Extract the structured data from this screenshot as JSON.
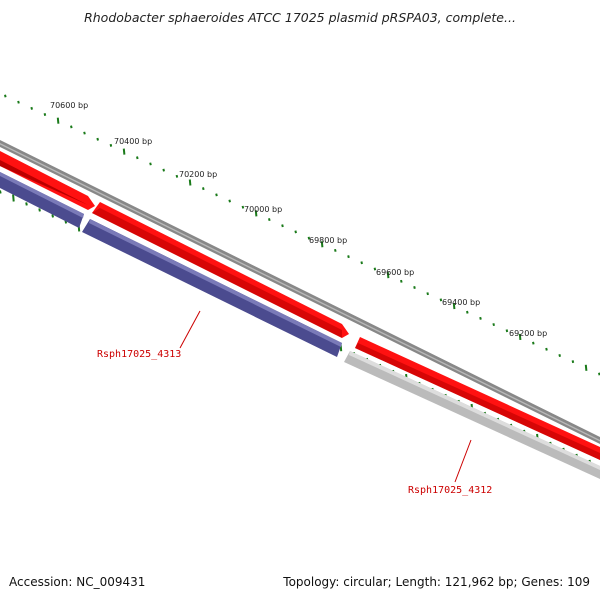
{
  "title": "Rhodobacter sphaeroides ATCC 17025 plasmid pRSPA03, complete...",
  "footer": {
    "accession": "Accession: NC_009431",
    "stats": "Topology: circular; Length: 121,962 bp; Genes: 109"
  },
  "ruler_labels": [
    "70600 bp",
    "70400 bp",
    "70200 bp",
    "70000 bp",
    "69800 bp",
    "69600 bp",
    "69400 bp",
    "69200 bp"
  ],
  "genes": [
    {
      "locus": "Rsph17025_4313",
      "strand": "minus",
      "color": "#4b4b8f"
    },
    {
      "locus": "Rsph17025_4312",
      "strand": "minus",
      "color": "#bbbbbb"
    }
  ],
  "colors": {
    "forward_gene": "#ff0000",
    "backbone": "#808080",
    "tick": "#1a7a1a",
    "gene_label": "#cc0000"
  }
}
